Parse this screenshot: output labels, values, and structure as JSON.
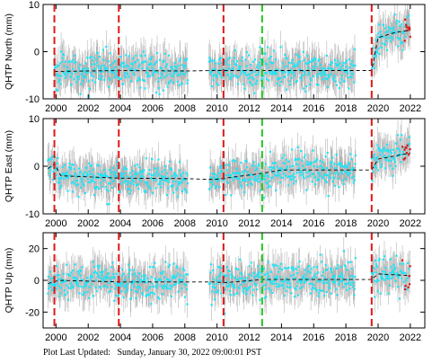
{
  "colors": {
    "error_bar": "#b4b4b4",
    "daily_point": "#22e3f5",
    "rapid_point": "#e01818",
    "model_line": "#000000",
    "equipment_change": "#e01818",
    "earthquake": "#22c822"
  },
  "chart_data": [
    {
      "type": "scatter",
      "ylabel": "QHTP North (mm)",
      "xlim": [
        1999.2,
        2022.9
      ],
      "ylim": [
        -10,
        10
      ],
      "yticks": [
        -10,
        0,
        10
      ],
      "xticks": [
        2000,
        2002,
        2004,
        2006,
        2008,
        2010,
        2012,
        2014,
        2016,
        2018,
        2020,
        2022
      ],
      "show_x_tick_labels": true,
      "series": [
        {
          "x": [
            1999.9,
            2004.0,
            2008.0,
            2009.8,
            2010.5,
            2012.8,
            2018.5,
            2019.6,
            2020.0,
            2021.0,
            2022.0
          ],
          "y": [
            -4.2,
            -4.0,
            -4.1,
            -4.0,
            -4.0,
            -4.0,
            -4.0,
            -4.0,
            3.0,
            4.0,
            4.6
          ]
        }
      ],
      "gaps": [
        [
          2008.2,
          2009.5
        ],
        [
          2018.6,
          2019.6
        ]
      ],
      "noise_sd": 1.8,
      "err_half": 3.2,
      "equipment_changes": [
        1999.9,
        2003.9,
        2010.4,
        2019.6
      ],
      "earthquakes": [
        2012.8
      ]
    },
    {
      "type": "scatter",
      "ylabel": "QHTP East (mm)",
      "xlim": [
        1999.2,
        2022.9
      ],
      "ylim": [
        -10,
        10
      ],
      "yticks": [
        -10,
        0,
        10
      ],
      "xticks": [
        2000,
        2002,
        2004,
        2006,
        2008,
        2010,
        2012,
        2014,
        2016,
        2018,
        2020,
        2022
      ],
      "show_x_tick_labels": true,
      "series": [
        {
          "x": [
            1999.5,
            1999.9,
            2000.3,
            2004.0,
            2008.0,
            2009.8,
            2010.5,
            2012.8,
            2014.0,
            2018.5,
            2019.6,
            2020.0,
            2022.0
          ],
          "y": [
            -0.5,
            0.5,
            -2.0,
            -2.5,
            -2.6,
            -2.8,
            -2.5,
            -1.5,
            -0.8,
            -0.8,
            -0.8,
            1.5,
            2.8
          ]
        }
      ],
      "gaps": [
        [
          2008.2,
          2009.5
        ],
        [
          2018.6,
          2019.6
        ]
      ],
      "noise_sd": 1.7,
      "err_half": 3.0,
      "equipment_changes": [
        1999.9,
        2003.9,
        2010.4,
        2019.6
      ],
      "earthquakes": [
        2012.8
      ]
    },
    {
      "type": "scatter",
      "ylabel": "QHTP Up (mm)",
      "xlim": [
        1999.2,
        2022.9
      ],
      "ylim": [
        -30,
        30
      ],
      "yticks": [
        -20,
        0,
        20
      ],
      "xticks": [
        2000,
        2002,
        2004,
        2006,
        2008,
        2010,
        2012,
        2014,
        2016,
        2018,
        2020,
        2022
      ],
      "show_x_tick_labels": true,
      "series": [
        {
          "x": [
            1999.5,
            2000.2,
            2004.0,
            2008.0,
            2009.8,
            2010.5,
            2012.8,
            2018.5,
            2019.6,
            2020.0,
            2022.0
          ],
          "y": [
            -2.0,
            0.0,
            -1.0,
            -1.0,
            -1.0,
            -1.5,
            0.5,
            0.5,
            0.5,
            4.0,
            3.0
          ]
        }
      ],
      "gaps": [
        [
          2008.2,
          2009.5
        ],
        [
          2018.6,
          2019.6
        ]
      ],
      "noise_sd": 5.5,
      "err_half": 9.0,
      "equipment_changes": [
        1999.9,
        2003.9,
        2010.4,
        2019.6
      ],
      "earthquakes": [
        2012.8
      ]
    }
  ],
  "footer": {
    "label": "Plot Last Updated:",
    "value": "Sunday, January 30, 2022 09:00:01 PST"
  }
}
